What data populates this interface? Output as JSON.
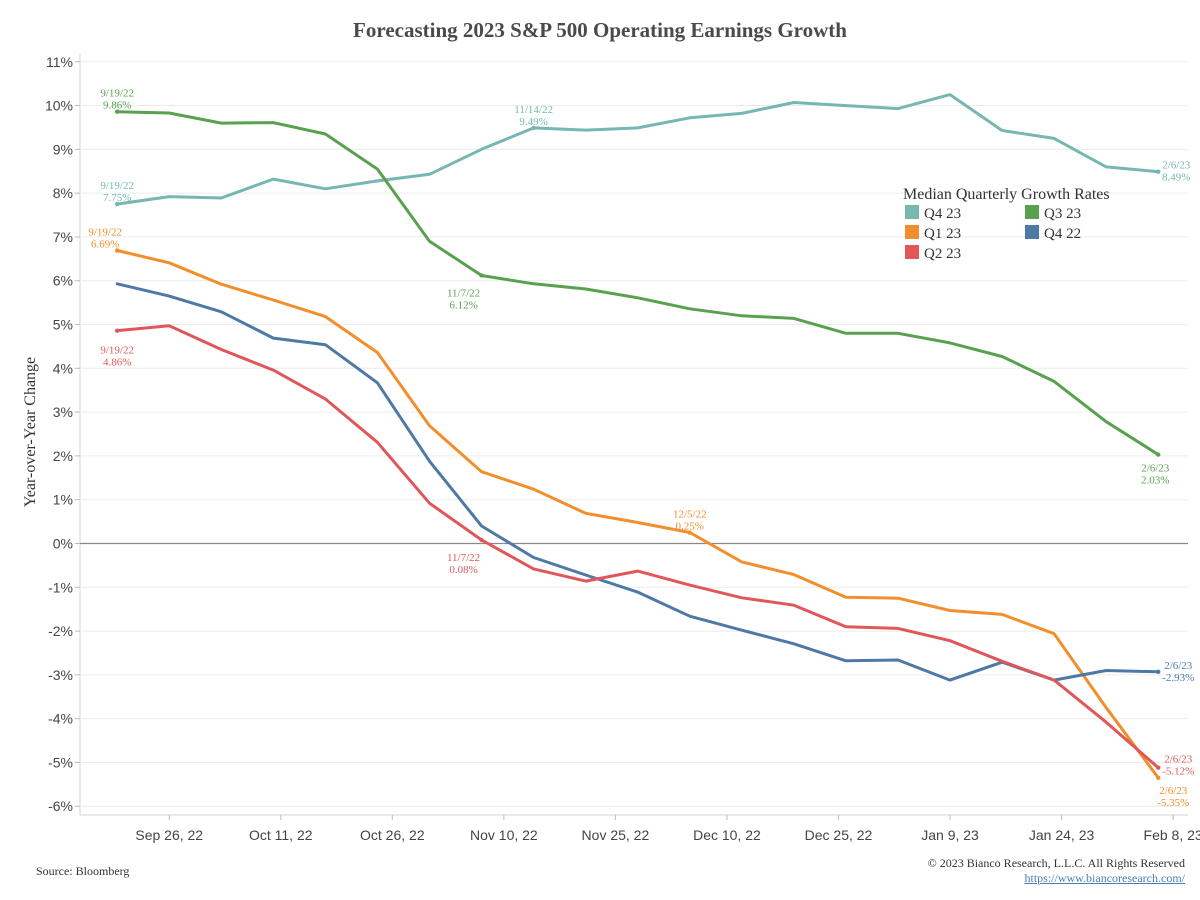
{
  "chart_data": {
    "type": "line",
    "title": "Forecasting 2023 S&P 500 Operating Earnings Growth",
    "ylabel": "Year-over-Year Change",
    "xlabel": "",
    "x_ticks": [
      "Sep 26, 22",
      "Oct 11, 22",
      "Oct 26, 22",
      "Nov 10, 22",
      "Nov 25, 22",
      "Dec 10, 22",
      "Dec 25, 22",
      "Jan 9, 23",
      "Jan 24, 23",
      "Feb 8, 23"
    ],
    "y_ticks": [
      "11%",
      "10%",
      "9%",
      "8%",
      "7%",
      "6%",
      "5%",
      "4%",
      "3%",
      "2%",
      "1%",
      "0%",
      "-1%",
      "-2%",
      "-3%",
      "-4%",
      "-5%",
      "-6%"
    ],
    "ylim": [
      -6.2,
      11.2
    ],
    "xlim": [
      "2022-09-14",
      "2023-02-10"
    ],
    "dates": [
      "2022-09-19",
      "2022-09-26",
      "2022-10-03",
      "2022-10-10",
      "2022-10-17",
      "2022-10-24",
      "2022-10-31",
      "2022-11-07",
      "2022-11-14",
      "2022-11-21",
      "2022-11-28",
      "2022-12-05",
      "2022-12-12",
      "2022-12-19",
      "2022-12-26",
      "2023-01-02",
      "2023-01-09",
      "2023-01-16",
      "2023-01-23",
      "2023-01-30",
      "2023-02-06"
    ],
    "legend_title": "Median Quarterly Growth Rates",
    "legend_placement": "top-right",
    "grid": true,
    "series": [
      {
        "name": "Q4 23",
        "color": "#76b7b2",
        "values": [
          7.75,
          7.92,
          7.89,
          8.32,
          8.1,
          8.28,
          8.43,
          9.0,
          9.49,
          9.44,
          9.49,
          9.72,
          9.82,
          10.07,
          10.0,
          9.93,
          10.25,
          9.43,
          9.25,
          8.6,
          8.49
        ]
      },
      {
        "name": "Q3 23",
        "color": "#59a14f",
        "values": [
          9.86,
          9.83,
          9.6,
          9.61,
          9.35,
          8.55,
          6.9,
          6.12,
          5.93,
          5.81,
          5.61,
          5.36,
          5.2,
          5.14,
          4.8,
          4.8,
          4.58,
          4.27,
          3.7,
          2.78,
          2.03
        ]
      },
      {
        "name": "Q1 23",
        "color": "#f28e2b",
        "values": [
          6.69,
          6.41,
          5.92,
          5.56,
          5.18,
          4.36,
          2.69,
          1.64,
          1.24,
          0.69,
          0.48,
          0.25,
          -0.42,
          -0.71,
          -1.23,
          -1.25,
          -1.53,
          -1.62,
          -2.06,
          -3.75,
          -5.35
        ]
      },
      {
        "name": "Q4 22",
        "color": "#4e79a7",
        "values": [
          5.93,
          5.65,
          5.29,
          4.69,
          4.54,
          3.67,
          1.88,
          0.4,
          -0.32,
          -0.72,
          -1.11,
          -1.66,
          -1.98,
          -2.29,
          -2.68,
          -2.66,
          -3.12,
          -2.71,
          -3.12,
          -2.9,
          -2.93
        ]
      },
      {
        "name": "Q2 23",
        "color": "#e15759",
        "values": [
          4.86,
          4.97,
          4.43,
          3.96,
          3.3,
          2.31,
          0.92,
          0.08,
          -0.58,
          -0.86,
          -0.63,
          -0.95,
          -1.24,
          -1.41,
          -1.9,
          -1.94,
          -2.22,
          -2.69,
          -3.12,
          -4.08,
          -5.12
        ]
      }
    ],
    "annotations": [
      {
        "series": "Q3 23",
        "date_label": "9/19/22",
        "value_label": "9.86%"
      },
      {
        "series": "Q4 23",
        "date_label": "9/19/22",
        "value_label": "7.75%"
      },
      {
        "series": "Q1 23",
        "date_label": "9/19/22",
        "value_label": "6.69%"
      },
      {
        "series": "Q2 23",
        "date_label": "9/19/22",
        "value_label": "4.86%"
      },
      {
        "series": "Q4 23",
        "date_label": "11/14/22",
        "value_label": "9.49%"
      },
      {
        "series": "Q3 23",
        "date_label": "11/7/22",
        "value_label": "6.12%"
      },
      {
        "series": "Q2 23",
        "date_label": "11/7/22",
        "value_label": "0.08%"
      },
      {
        "series": "Q1 23",
        "date_label": "12/5/22",
        "value_label": "0.25%"
      },
      {
        "series": "Q4 23",
        "date_label": "2/6/23",
        "value_label": "8.49%"
      },
      {
        "series": "Q3 23",
        "date_label": "2/6/23",
        "value_label": "2.03%"
      },
      {
        "series": "Q4 22",
        "date_label": "2/6/23",
        "value_label": "-2.93%"
      },
      {
        "series": "Q2 23",
        "date_label": "2/6/23",
        "value_label": "-5.12%"
      },
      {
        "series": "Q1 23",
        "date_label": "2/6/23",
        "value_label": "-5.35%"
      }
    ]
  },
  "footer": {
    "source": "Source: Bloomberg",
    "copyright": "© 2023 Bianco Research, L.L.C. All Rights Reserved",
    "url": "https://www.biancoresearch.com/"
  }
}
